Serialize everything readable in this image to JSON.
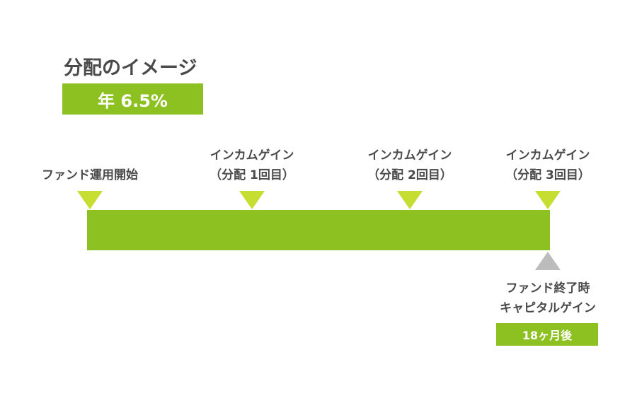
{
  "header": {
    "title": "分配のイメージ",
    "rate": "年 6.5%"
  },
  "timeline": {
    "start_label": "ファンド運用開始",
    "payouts": [
      {
        "line1": "インカムゲイン",
        "line2": "（分配 1回目）"
      },
      {
        "line1": "インカムゲイン",
        "line2": "（分配 2回目）"
      },
      {
        "line1": "インカムゲイン",
        "line2": "（分配 3回目）"
      }
    ],
    "end_label_1": "ファンド終了時",
    "end_label_2": "キャピタルゲイン",
    "period": "18ヶ月後"
  },
  "colors": {
    "green_bar": "#8dc021",
    "marker_yellow_green": "#c6dd32",
    "marker_gray": "#bcbcbc",
    "text_dark": "#4a4a4a"
  }
}
